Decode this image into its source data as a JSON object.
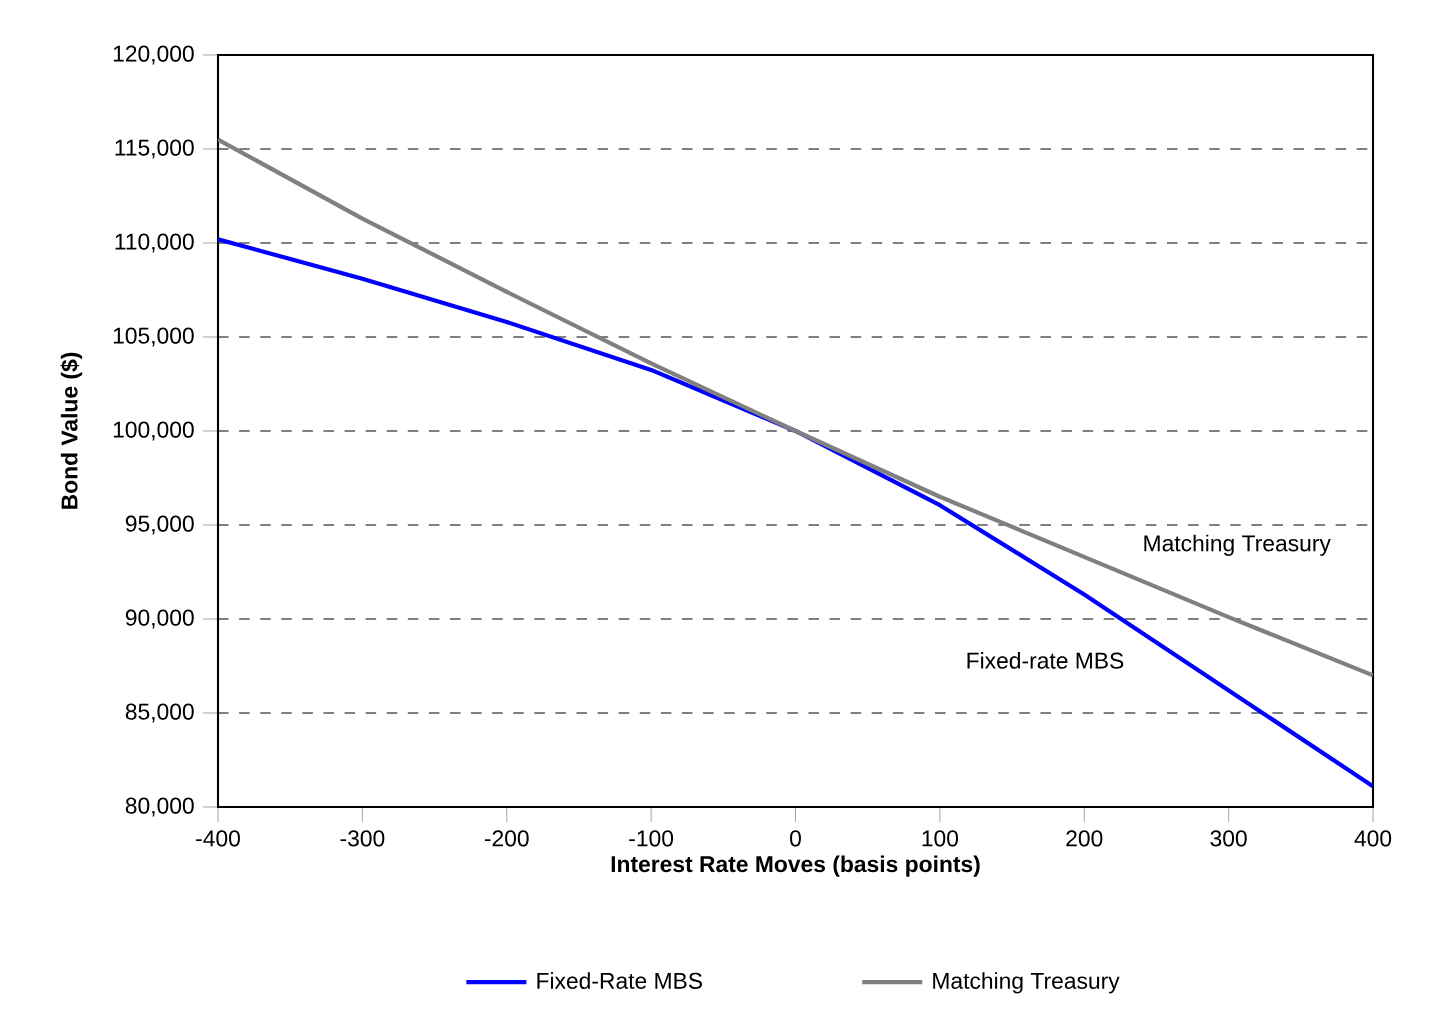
{
  "chart_data": {
    "type": "line",
    "xlabel": "Interest Rate Moves (basis points)",
    "ylabel": "Bond Value ($)",
    "x": [
      -400,
      -300,
      -200,
      -100,
      0,
      100,
      200,
      300,
      400
    ],
    "series": [
      {
        "name": "Fixed-Rate MBS",
        "color": "#0000ff",
        "values": [
          110200,
          108100,
          105800,
          103250,
          100000,
          96050,
          91300,
          86200,
          81100
        ]
      },
      {
        "name": "Matching Treasury",
        "color": "#808080",
        "values": [
          115500,
          111300,
          107400,
          103600,
          100000,
          96500,
          93300,
          90100,
          87000
        ]
      }
    ],
    "xlim": [
      -400,
      400
    ],
    "ylim": [
      80000,
      120000
    ],
    "xticks": [
      -400,
      -300,
      -200,
      -100,
      0,
      100,
      200,
      300,
      400
    ],
    "yticks": [
      {
        "value": 80000,
        "label": "80,000"
      },
      {
        "value": 85000,
        "label": "85,000"
      },
      {
        "value": 90000,
        "label": "90,000"
      },
      {
        "value": 95000,
        "label": "95,000"
      },
      {
        "value": 100000,
        "label": "100,000"
      },
      {
        "value": 105000,
        "label": "105,000"
      },
      {
        "value": 110000,
        "label": "110,000"
      },
      {
        "value": 115000,
        "label": "115,000"
      },
      {
        "value": 120000,
        "label": "120,000"
      }
    ],
    "annotations": [
      "Matching Treasury",
      "Fixed-rate MBS"
    ],
    "grid": "y",
    "legend": "bottom",
    "marker": "none",
    "line_style": "solid"
  }
}
